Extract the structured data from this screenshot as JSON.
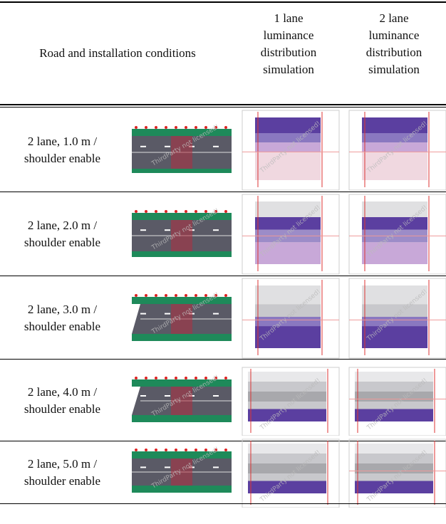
{
  "table": {
    "header": [
      "Road and installation conditions",
      "1 lane\nluminance\ndistribution\nsimulation",
      "2 lane\nluminance\ndistribution\nsimulation"
    ],
    "rows": [
      "2 lane, 1.0 m /\nshoulder enable",
      "2 lane, 2.0 m /\nshoulder enable",
      "2 lane, 3.0 m /\nshoulder enable",
      "2 lane, 4.0 m /\nshoulder enable",
      "2 lane, 5.0 m /\nshoulder enable"
    ],
    "watermark": "ThirdParty not licensed!"
  }
}
